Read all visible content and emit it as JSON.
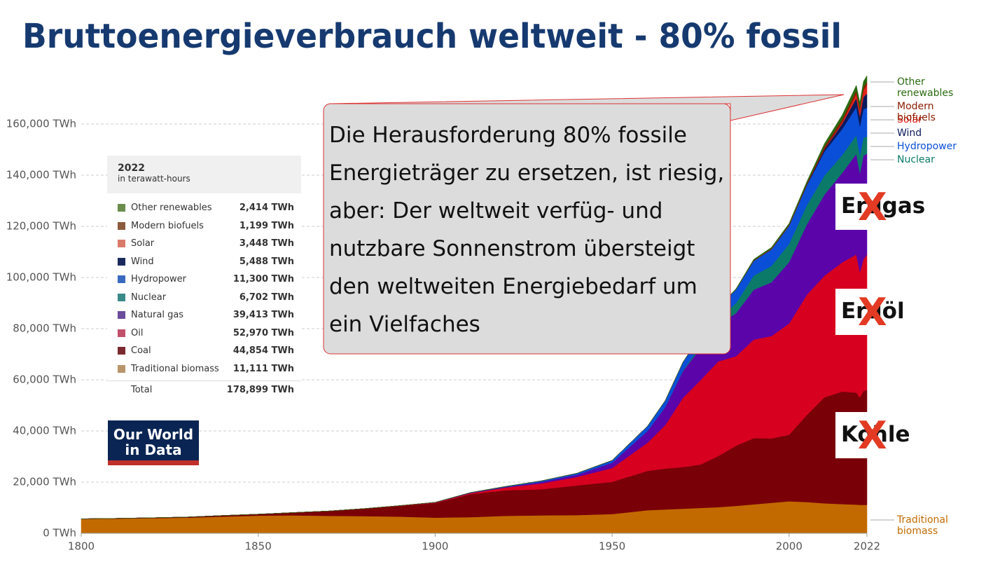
{
  "chart_data": {
    "type": "stacked-area",
    "title": "Bruttoenergieverbrauch weltweit - 80% fossil",
    "x": [
      1800,
      1810,
      1820,
      1830,
      1840,
      1850,
      1860,
      1870,
      1880,
      1890,
      1900,
      1910,
      1920,
      1930,
      1940,
      1950,
      1960,
      1965,
      1970,
      1975,
      1980,
      1985,
      1990,
      1995,
      2000,
      2005,
      2010,
      2015,
      2019,
      2020,
      2021,
      2022
    ],
    "xlim": [
      1800,
      2022
    ],
    "xticks": [
      1800,
      1850,
      1900,
      1950,
      2000,
      2022
    ],
    "ylim": [
      0,
      180000
    ],
    "yticks": [
      {
        "value": 0,
        "label": "0 TWh"
      },
      {
        "value": 20000,
        "label": "20,000 TWh"
      },
      {
        "value": 40000,
        "label": "40,000 TWh"
      },
      {
        "value": 60000,
        "label": "60,000 TWh"
      },
      {
        "value": 80000,
        "label": "80,000 TWh"
      },
      {
        "value": 100000,
        "label": "100,000 TWh"
      },
      {
        "value": 120000,
        "label": "120,000 TWh"
      },
      {
        "value": 140000,
        "label": "140,000 TWh"
      },
      {
        "value": 160000,
        "label": "160,000 TWh"
      }
    ],
    "grid": true,
    "series": [
      {
        "name": "Traditional biomass",
        "color": "#c26a00",
        "values": [
          5556,
          5700,
          5900,
          6100,
          6500,
          6900,
          7000,
          6800,
          6700,
          6500,
          6100,
          6300,
          6800,
          7000,
          7100,
          7500,
          9000,
          9300,
          9600,
          9900,
          10200,
          10700,
          11300,
          11900,
          12500,
          12200,
          11700,
          11400,
          11200,
          11100,
          11100,
          11111
        ]
      },
      {
        "name": "Coal",
        "color": "#7a0008",
        "values": [
          97,
          130,
          170,
          260,
          450,
          570,
          1100,
          1900,
          2900,
          4200,
          5700,
          9000,
          10000,
          10200,
          11600,
          12600,
          15400,
          16000,
          16300,
          17000,
          20000,
          23500,
          25900,
          25200,
          26000,
          34000,
          41500,
          44000,
          43800,
          42000,
          44500,
          44854
        ]
      },
      {
        "name": "Oil",
        "color": "#d7001f",
        "values": [
          0,
          0,
          0,
          0,
          0,
          0,
          0,
          10,
          50,
          100,
          180,
          380,
          1100,
          2300,
          3300,
          5400,
          11000,
          17000,
          27000,
          33000,
          37000,
          35000,
          38500,
          40000,
          43500,
          47000,
          47500,
          50500,
          54000,
          49000,
          51500,
          52970
        ]
      },
      {
        "name": "Natural gas",
        "color": "#5a04aa",
        "values": [
          0,
          0,
          0,
          0,
          0,
          0,
          0,
          0,
          0,
          10,
          70,
          150,
          240,
          600,
          900,
          2100,
          4600,
          7000,
          10500,
          12500,
          14400,
          16800,
          19500,
          21000,
          24000,
          27500,
          31700,
          35000,
          39300,
          38700,
          40500,
          39413
        ]
      },
      {
        "name": "Nuclear",
        "color": "#0b7a68",
        "values": [
          0,
          0,
          0,
          0,
          0,
          0,
          0,
          0,
          0,
          0,
          0,
          0,
          0,
          0,
          0,
          0,
          0,
          70,
          220,
          1000,
          1900,
          4000,
          5500,
          6400,
          7100,
          7500,
          7500,
          6900,
          7300,
          6900,
          7100,
          6702
        ]
      },
      {
        "name": "Hydropower",
        "color": "#0a4fd8",
        "values": [
          0,
          0,
          0,
          0,
          0,
          0,
          0,
          0,
          0,
          0,
          50,
          100,
          200,
          400,
          550,
          900,
          1900,
          2500,
          3200,
          3900,
          4600,
          5300,
          5800,
          6500,
          7100,
          7800,
          9300,
          10200,
          11000,
          11300,
          11100,
          11300
        ]
      },
      {
        "name": "Wind",
        "color": "#0b1a5c",
        "values": [
          0,
          0,
          0,
          0,
          0,
          0,
          0,
          0,
          0,
          0,
          0,
          0,
          0,
          0,
          0,
          0,
          0,
          0,
          0,
          0,
          0,
          0,
          10,
          20,
          80,
          270,
          900,
          2100,
          3500,
          4000,
          4700,
          5488
        ]
      },
      {
        "name": "Solar",
        "color": "#e2231a",
        "values": [
          0,
          0,
          0,
          0,
          0,
          0,
          0,
          0,
          0,
          0,
          0,
          0,
          0,
          0,
          0,
          0,
          0,
          0,
          0,
          0,
          0,
          0,
          0,
          0,
          0,
          10,
          80,
          630,
          1750,
          2200,
          2700,
          3448
        ]
      },
      {
        "name": "Modern biofuels",
        "color": "#8a1c00",
        "values": [
          0,
          0,
          0,
          0,
          0,
          0,
          0,
          0,
          0,
          0,
          0,
          0,
          0,
          0,
          0,
          0,
          0,
          0,
          0,
          0,
          0,
          0,
          200,
          250,
          300,
          400,
          1000,
          1100,
          1200,
          1100,
          1150,
          1199
        ]
      },
      {
        "name": "Other renewables",
        "color": "#2a6a10",
        "values": [
          0,
          0,
          0,
          0,
          0,
          0,
          0,
          0,
          0,
          0,
          0,
          0,
          0,
          0,
          0,
          0,
          0,
          50,
          100,
          150,
          200,
          300,
          400,
          500,
          600,
          800,
          1200,
          1700,
          2100,
          2200,
          2300,
          2414
        ]
      }
    ]
  },
  "summary_table": {
    "title": "2022",
    "subtitle": "in terawatt-hours",
    "rows": [
      {
        "label": "Other renewables",
        "value": "2,414 TWh",
        "color": "#6a8c4c"
      },
      {
        "label": "Modern biofuels",
        "value": "1,199 TWh",
        "color": "#8c5a3c"
      },
      {
        "label": "Solar",
        "value": "3,448 TWh",
        "color": "#d97a6a"
      },
      {
        "label": "Wind",
        "value": "5,488 TWh",
        "color": "#1a2a5c"
      },
      {
        "label": "Hydropower",
        "value": "11,300 TWh",
        "color": "#3a6ac0"
      },
      {
        "label": "Nuclear",
        "value": "6,702 TWh",
        "color": "#3a8a88"
      },
      {
        "label": "Natural gas",
        "value": "39,413 TWh",
        "color": "#6a4c9c"
      },
      {
        "label": "Oil",
        "value": "52,970 TWh",
        "color": "#c0506a"
      },
      {
        "label": "Coal",
        "value": "44,854 TWh",
        "color": "#7a2a30"
      },
      {
        "label": "Traditional biomass",
        "value": "11,111 TWh",
        "color": "#b8956a"
      }
    ],
    "total": {
      "label": "Total",
      "value": "178,899 TWh"
    }
  },
  "callout": "Die Herausforderung 80% fossile Energieträger zu ersetzen, ist riesig, aber: Der weltweit verfüg- und nutzbare Sonnenstrom übersteigt den weltweiten Energiebedarf um ein Vielfaches",
  "logo": "Our World in Data",
  "replacements": [
    {
      "label": "Erdgas",
      "mark": "X"
    },
    {
      "label": "Erdöl",
      "mark": "X"
    },
    {
      "label": "Kohle",
      "mark": "X"
    }
  ]
}
